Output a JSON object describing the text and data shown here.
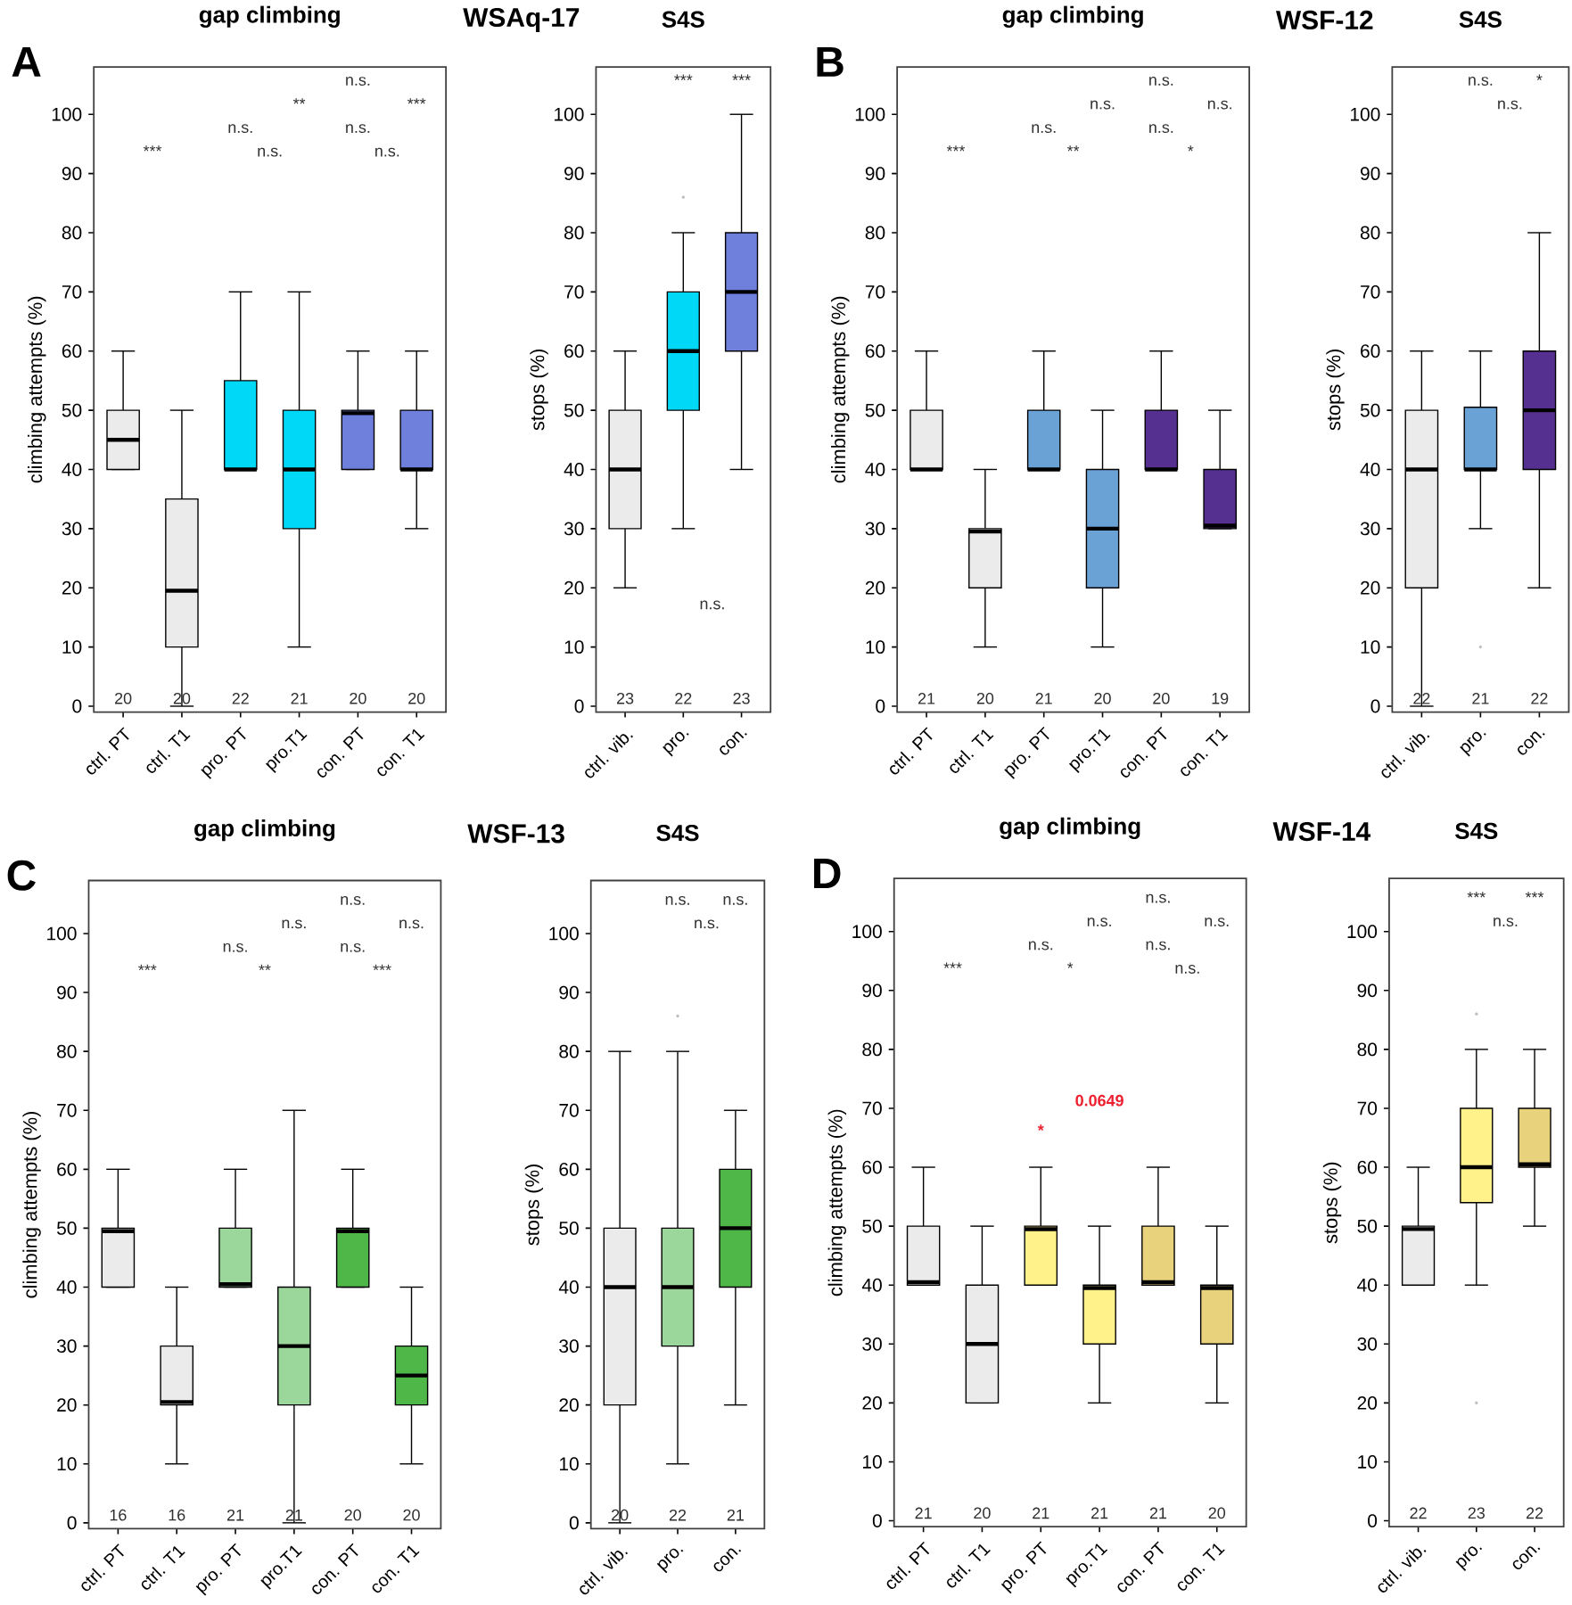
{
  "chart_data": [
    {
      "type": "box",
      "title": "gap climbing",
      "ylabel": "climbing attempts (%)",
      "categories": [
        "ctrl. PT",
        "ctrl. T1",
        "pro. PT",
        "pro.T1",
        "con. PT",
        "con. T1"
      ],
      "colors": [
        "#ebebeb",
        "#ebebeb",
        "#00d8f8",
        "#00d8f8",
        "#6f7fdc",
        "#6f7fdc"
      ],
      "boxes": [
        {
          "low": 40,
          "q1": 40,
          "median": 45,
          "q3": 50,
          "high": 60
        },
        {
          "low": 0,
          "q1": 10,
          "median": 19.5,
          "q3": 35,
          "high": 50
        },
        {
          "low": 40,
          "q1": 40,
          "median": 40,
          "q3": 55,
          "high": 70
        },
        {
          "low": 10,
          "q1": 30,
          "median": 40,
          "q3": 50,
          "high": 70
        },
        {
          "low": 40,
          "q1": 40,
          "median": 49.5,
          "q3": 50,
          "high": 60
        },
        {
          "low": 30,
          "q1": 40,
          "median": 40,
          "q3": 50,
          "high": 60
        }
      ],
      "ylim": [
        -1,
        108
      ],
      "yticks": [
        0,
        10,
        20,
        30,
        40,
        50,
        60,
        70,
        80,
        90,
        100
      ],
      "annotations": [
        "A",
        "WSAq-17",
        "***",
        "n.s.",
        "n.s.",
        "n.s.",
        "n.s.",
        "**",
        "***",
        "n.s.",
        "20",
        "20",
        "22",
        "21",
        "20",
        "20"
      ]
    },
    {
      "type": "box",
      "title": "S4S",
      "ylabel": "stops (%)",
      "categories": [
        "ctrl. vib.",
        "pro.",
        "con."
      ],
      "colors": [
        "#ebebeb",
        "#00d8f8",
        "#6f7fdc"
      ],
      "boxes": [
        {
          "low": 20,
          "q1": 30,
          "median": 40,
          "q3": 50,
          "high": 60
        },
        {
          "low": 30,
          "q1": 50,
          "median": 60,
          "q3": 70,
          "high": 80,
          "outliers": [
            86
          ]
        },
        {
          "low": 40,
          "q1": 60,
          "median": 70,
          "q3": 80,
          "high": 100
        }
      ],
      "ylim": [
        -1,
        108
      ],
      "yticks": [
        0,
        10,
        20,
        30,
        40,
        50,
        60,
        70,
        80,
        90,
        100
      ],
      "annotations": [
        "***",
        "***",
        "n.s.",
        "23",
        "22",
        "23"
      ]
    },
    {
      "type": "box",
      "title": "gap climbing",
      "ylabel": "climbing attempts (%)",
      "categories": [
        "ctrl. PT",
        "ctrl. T1",
        "pro. PT",
        "pro.T1",
        "con. PT",
        "con. T1"
      ],
      "colors": [
        "#ebebeb",
        "#ebebeb",
        "#6aa2d6",
        "#6aa2d6",
        "#563090",
        "#563090"
      ],
      "boxes": [
        {
          "low": 40,
          "q1": 40,
          "median": 40,
          "q3": 50,
          "high": 60
        },
        {
          "low": 10,
          "q1": 20,
          "median": 29.5,
          "q3": 30,
          "high": 40
        },
        {
          "low": 40,
          "q1": 40,
          "median": 40,
          "q3": 50,
          "high": 60
        },
        {
          "low": 10,
          "q1": 20,
          "median": 30,
          "q3": 40,
          "high": 50
        },
        {
          "low": 40,
          "q1": 40,
          "median": 40,
          "q3": 50,
          "high": 60
        },
        {
          "low": 30,
          "q1": 30,
          "median": 30.5,
          "q3": 40,
          "high": 50
        }
      ],
      "ylim": [
        -1,
        108
      ],
      "yticks": [
        0,
        10,
        20,
        30,
        40,
        50,
        60,
        70,
        80,
        90,
        100
      ],
      "annotations": [
        "B",
        "WSF-12",
        "***",
        "**",
        "*",
        "n.s.",
        "n.s.",
        "n.s.",
        "n.s.",
        "n.s.",
        "21",
        "20",
        "21",
        "20",
        "20",
        "19"
      ]
    },
    {
      "type": "box",
      "title": "S4S",
      "ylabel": "stops (%)",
      "categories": [
        "ctrl. vib.",
        "pro.",
        "con."
      ],
      "colors": [
        "#ebebeb",
        "#6aa2d6",
        "#563090"
      ],
      "boxes": [
        {
          "low": 0,
          "q1": 20,
          "median": 40,
          "q3": 50,
          "high": 60
        },
        {
          "low": 30,
          "q1": 40,
          "median": 40,
          "q3": 50.5,
          "high": 60,
          "outliers": [
            10
          ]
        },
        {
          "low": 20,
          "q1": 40,
          "median": 50,
          "q3": 60,
          "high": 80
        }
      ],
      "ylim": [
        -1,
        108
      ],
      "yticks": [
        0,
        10,
        20,
        30,
        40,
        50,
        60,
        70,
        80,
        90,
        100
      ],
      "annotations": [
        "n.s.",
        "*",
        "n.s.",
        "22",
        "21",
        "22"
      ]
    },
    {
      "type": "box",
      "title": "gap climbing",
      "ylabel": "climbing attempts (%)",
      "categories": [
        "ctrl. PT",
        "ctrl. T1",
        "pro. PT",
        "pro.T1",
        "con. PT",
        "con. T1"
      ],
      "colors": [
        "#ebebeb",
        "#ebebeb",
        "#9bd79b",
        "#9bd79b",
        "#4fb648",
        "#4fb648"
      ],
      "boxes": [
        {
          "low": 40,
          "q1": 40,
          "median": 49.5,
          "q3": 50,
          "high": 60
        },
        {
          "low": 10,
          "q1": 20,
          "median": 20.5,
          "q3": 30,
          "high": 40
        },
        {
          "low": 40,
          "q1": 40,
          "median": 40.5,
          "q3": 50,
          "high": 60
        },
        {
          "low": 0,
          "q1": 20,
          "median": 30,
          "q3": 40,
          "high": 70
        },
        {
          "low": 40,
          "q1": 40,
          "median": 49.5,
          "q3": 50,
          "high": 60
        },
        {
          "low": 10,
          "q1": 20,
          "median": 25,
          "q3": 30,
          "high": 40
        }
      ],
      "ylim": [
        -1,
        109
      ],
      "yticks": [
        0,
        10,
        20,
        30,
        40,
        50,
        60,
        70,
        80,
        90,
        100
      ],
      "annotations": [
        "C",
        "WSF-13",
        "***",
        "**",
        "***",
        "n.s.",
        "n.s.",
        "n.s.",
        "n.s.",
        "n.s.",
        "16",
        "16",
        "21",
        "21",
        "20",
        "20"
      ]
    },
    {
      "type": "box",
      "title": "S4S",
      "ylabel": "stops (%)",
      "categories": [
        "ctrl. vib.",
        "pro.",
        "con."
      ],
      "colors": [
        "#ebebeb",
        "#9bd79b",
        "#4fb648"
      ],
      "boxes": [
        {
          "low": 0,
          "q1": 20,
          "median": 40,
          "q3": 50,
          "high": 80
        },
        {
          "low": 10,
          "q1": 30,
          "median": 40,
          "q3": 50,
          "high": 80,
          "outliers": [
            86
          ]
        },
        {
          "low": 20,
          "q1": 40,
          "median": 50,
          "q3": 60,
          "high": 70
        }
      ],
      "ylim": [
        -1,
        109
      ],
      "yticks": [
        0,
        10,
        20,
        30,
        40,
        50,
        60,
        70,
        80,
        90,
        100
      ],
      "annotations": [
        "n.s.",
        "n.s.",
        "n.s.",
        "20",
        "22",
        "21"
      ]
    },
    {
      "type": "box",
      "title": "gap climbing",
      "ylabel": "climbing attempts (%)",
      "categories": [
        "ctrl. PT",
        "ctrl. T1",
        "pro. PT",
        "pro.T1",
        "con. PT",
        "con. T1"
      ],
      "colors": [
        "#ebebeb",
        "#ebebeb",
        "#fff28a",
        "#fff28a",
        "#e8d37c",
        "#e8d37c"
      ],
      "boxes": [
        {
          "low": 40,
          "q1": 40,
          "median": 40.5,
          "q3": 50,
          "high": 60
        },
        {
          "low": 20,
          "q1": 20,
          "median": 30,
          "q3": 40,
          "high": 50
        },
        {
          "low": 40,
          "q1": 40,
          "median": 49.5,
          "q3": 50,
          "high": 60
        },
        {
          "low": 20,
          "q1": 30,
          "median": 39.5,
          "q3": 40,
          "high": 50
        },
        {
          "low": 40,
          "q1": 40,
          "median": 40.5,
          "q3": 50,
          "high": 60
        },
        {
          "low": 20,
          "q1": 30,
          "median": 39.5,
          "q3": 40,
          "high": 50
        }
      ],
      "ylim": [
        -1,
        109
      ],
      "yticks": [
        0,
        10,
        20,
        30,
        40,
        50,
        60,
        70,
        80,
        90,
        100
      ],
      "annotations": [
        "D",
        "WSF-14",
        "***",
        "*",
        "n.s.",
        "n.s.",
        "n.s.",
        "n.s.",
        "n.s.",
        "n.s.",
        "0.0649",
        "*",
        "21",
        "20",
        "21",
        "21",
        "21",
        "20"
      ]
    },
    {
      "type": "box",
      "title": "S4S",
      "ylabel": "stops (%)",
      "categories": [
        "ctrl. vib.",
        "pro.",
        "con."
      ],
      "colors": [
        "#ebebeb",
        "#fff28a",
        "#e8d37c"
      ],
      "boxes": [
        {
          "low": 40,
          "q1": 40,
          "median": 49.5,
          "q3": 50,
          "high": 60
        },
        {
          "low": 40,
          "q1": 54,
          "median": 60,
          "q3": 70,
          "high": 80,
          "outliers": [
            86,
            20
          ]
        },
        {
          "low": 50,
          "q1": 60,
          "median": 60.5,
          "q3": 70,
          "high": 80
        }
      ],
      "ylim": [
        -1,
        109
      ],
      "yticks": [
        0,
        10,
        20,
        30,
        40,
        50,
        60,
        70,
        80,
        90,
        100
      ],
      "annotations": [
        "***",
        "***",
        "n.s.",
        "22",
        "23",
        "22"
      ]
    }
  ]
}
